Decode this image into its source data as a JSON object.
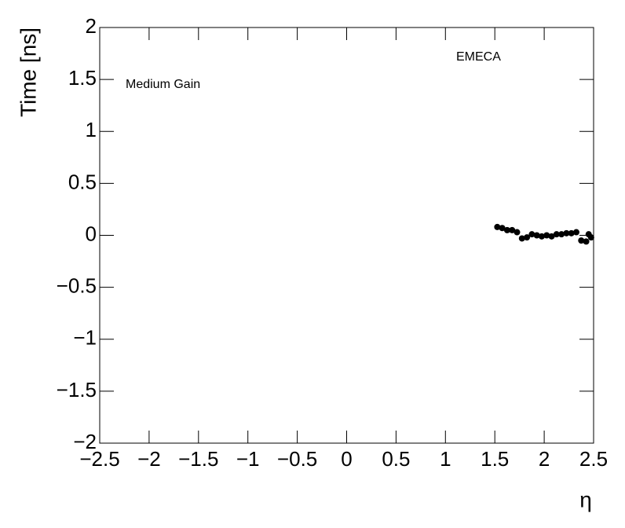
{
  "chart_data": {
    "type": "scatter",
    "x_label": "η",
    "y_label": "Time [ns]",
    "annotations": [
      "Medium Gain",
      "EMECA"
    ],
    "color": "#000000",
    "x": [
      1.525,
      1.575,
      1.625,
      1.675,
      1.725,
      1.775,
      1.825,
      1.875,
      1.925,
      1.975,
      2.025,
      2.075,
      2.125,
      2.175,
      2.225,
      2.275,
      2.325,
      2.375,
      2.425,
      2.45,
      2.475
    ],
    "values": [
      0.08,
      0.07,
      0.05,
      0.05,
      0.03,
      -0.03,
      -0.02,
      0.01,
      0.0,
      -0.01,
      0.0,
      -0.01,
      0.01,
      0.01,
      0.02,
      0.02,
      0.03,
      -0.05,
      -0.06,
      0.01,
      -0.02
    ],
    "xlim": [
      -2.5,
      2.5
    ],
    "xticks": [
      {
        "value": -2.5,
        "label": "−2.5"
      },
      {
        "value": -2,
        "label": "−2"
      },
      {
        "value": -1.5,
        "label": "−1.5"
      },
      {
        "value": -1,
        "label": "−1"
      },
      {
        "value": -0.5,
        "label": "−0.5"
      },
      0,
      0.5,
      1,
      1.5,
      2,
      2.5
    ],
    "ylim": [
      -2,
      2
    ],
    "yticks": [
      {
        "value": -2,
        "label": "−2"
      },
      {
        "value": -1.5,
        "label": "−1.5"
      },
      {
        "value": -1,
        "label": "−1"
      },
      {
        "value": -0.5,
        "label": "−0.5"
      },
      0,
      0.5,
      1,
      1.5,
      2
    ],
    "grid": false
  }
}
